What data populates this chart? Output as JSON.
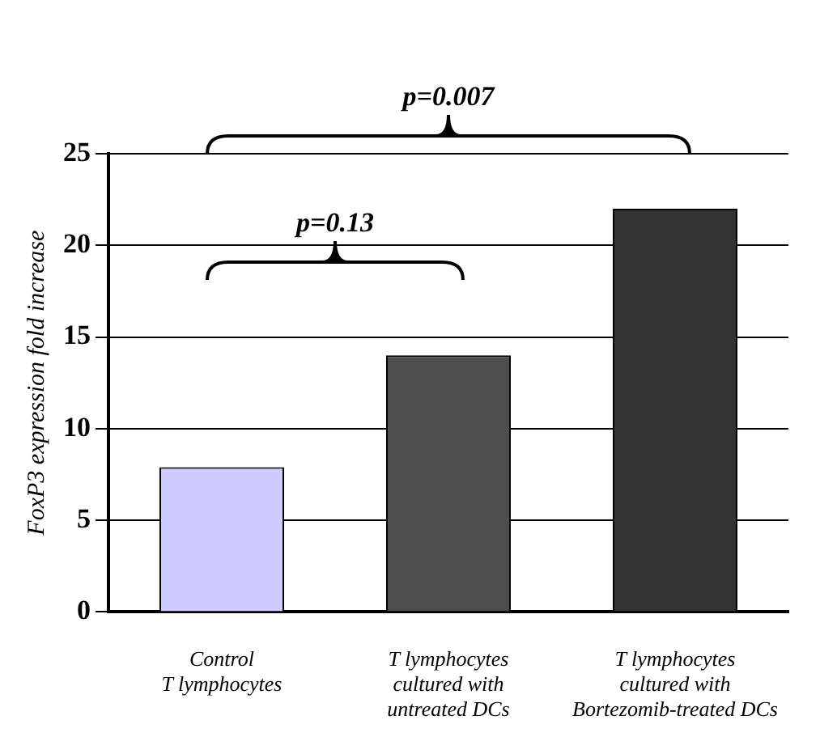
{
  "chart_data": {
    "type": "bar",
    "ylabel": "FoxP3 expression fold increase",
    "categories": [
      "Control\nT lymphocytes",
      "T lymphocytes\ncultured with\nuntreated DCs",
      "T lymphocytes\ncultured with\nBortezomib-treated DCs"
    ],
    "values": [
      7.9,
      14,
      22
    ],
    "colors": [
      "#ccccff",
      "#4d4d4d",
      "#333333"
    ],
    "ylim": [
      0,
      25
    ],
    "yticks": [
      0,
      5,
      10,
      15,
      20,
      25
    ],
    "grid": "y",
    "legend": false,
    "annotations": [
      "p=0.13",
      "p=0.007"
    ]
  }
}
